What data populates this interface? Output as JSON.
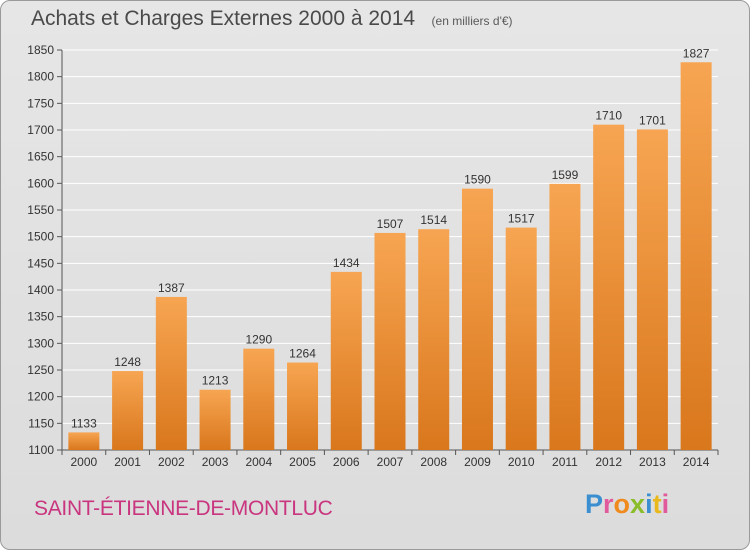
{
  "header": {
    "title": "Achats et Charges Externes 2000 à 2014",
    "unit": "(en milliers d'€)"
  },
  "footer": {
    "place": "SAINT-ÉTIENNE-DE-MONTLUC",
    "logo_letters": [
      {
        "ch": "P",
        "color": "#3b8fd0"
      },
      {
        "ch": "r",
        "color": "#e05a9c"
      },
      {
        "ch": "o",
        "color": "#f08a1c"
      },
      {
        "ch": "x",
        "color": "#8bbd2b"
      },
      {
        "ch": "i",
        "color": "#3b8fd0"
      },
      {
        "ch": "t",
        "color": "#e8b81c"
      },
      {
        "ch": "i",
        "color": "#e05a9c"
      }
    ]
  },
  "colors": {
    "bar_top": "#f7a552",
    "bar_bottom": "#d9771c",
    "grid": "#ffffff",
    "place": "#c9357f"
  },
  "chart_data": {
    "type": "bar",
    "title": "Achats et Charges Externes 2000 à 2014",
    "subtitle": "(en milliers d'€)",
    "categories": [
      "2000",
      "2001",
      "2002",
      "2003",
      "2004",
      "2005",
      "2006",
      "2007",
      "2008",
      "2009",
      "2010",
      "2011",
      "2012",
      "2013",
      "2014"
    ],
    "values": [
      1133,
      1248,
      1387,
      1213,
      1290,
      1264,
      1434,
      1507,
      1514,
      1590,
      1517,
      1599,
      1710,
      1701,
      1827
    ],
    "ylim": [
      1100,
      1850
    ],
    "yticks": [
      1100,
      1150,
      1200,
      1250,
      1300,
      1350,
      1400,
      1450,
      1500,
      1550,
      1600,
      1650,
      1700,
      1750,
      1800,
      1850
    ],
    "grid": true,
    "xlabel": "",
    "ylabel": ""
  }
}
